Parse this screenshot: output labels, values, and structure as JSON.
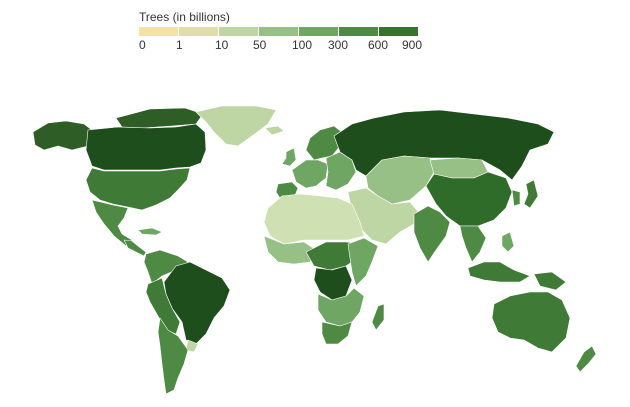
{
  "legend": {
    "title": "Trees (in billions)",
    "ticks": [
      "0",
      "1",
      "10",
      "50",
      "100",
      "300",
      "600",
      "900"
    ],
    "colors": [
      "#f5e3a4",
      "#e1ddab",
      "#bdd6a3",
      "#96c085",
      "#6fa663",
      "#4f8a45",
      "#36732f",
      "#1f4e1d"
    ]
  },
  "map": {
    "regions": [
      {
        "name": "alaska-western-canada",
        "color": "#2f5d26"
      },
      {
        "name": "canada",
        "color": "#1f4e1d"
      },
      {
        "name": "arctic-islands",
        "color": "#2f5d26"
      },
      {
        "name": "greenland",
        "color": "#bdd6a3"
      },
      {
        "name": "iceland",
        "color": "#bdd6a3"
      },
      {
        "name": "usa",
        "color": "#3f7a36"
      },
      {
        "name": "mexico",
        "color": "#4f8a45"
      },
      {
        "name": "central-america",
        "color": "#4f8a45"
      },
      {
        "name": "cuba",
        "color": "#6fa663"
      },
      {
        "name": "south-america-north",
        "color": "#4f8a45"
      },
      {
        "name": "brazil",
        "color": "#1f4e1d"
      },
      {
        "name": "peru-bolivia",
        "color": "#3f7a36"
      },
      {
        "name": "argentina-chile",
        "color": "#4f8a45"
      },
      {
        "name": "uruguay",
        "color": "#bdd6a3"
      },
      {
        "name": "scandinavia",
        "color": "#4f8a45"
      },
      {
        "name": "uk",
        "color": "#6fa663"
      },
      {
        "name": "western-europe",
        "color": "#6fa663"
      },
      {
        "name": "iberia",
        "color": "#4f8a45"
      },
      {
        "name": "eastern-europe",
        "color": "#6fa663"
      },
      {
        "name": "russia",
        "color": "#1f4e1d"
      },
      {
        "name": "kazakhstan-central-asia",
        "color": "#96c085"
      },
      {
        "name": "mongolia",
        "color": "#96c085"
      },
      {
        "name": "china",
        "color": "#2f6b29"
      },
      {
        "name": "middle-east",
        "color": "#bdd6a3"
      },
      {
        "name": "india",
        "color": "#4f8a45"
      },
      {
        "name": "southeast-asia",
        "color": "#4f8a45"
      },
      {
        "name": "japan",
        "color": "#3f7a36"
      },
      {
        "name": "korea",
        "color": "#4f8a45"
      },
      {
        "name": "indonesia",
        "color": "#3f7a36"
      },
      {
        "name": "papua-new-guinea",
        "color": "#3f7a36"
      },
      {
        "name": "philippines",
        "color": "#6fa663"
      },
      {
        "name": "north-africa",
        "color": "#cfe0b3"
      },
      {
        "name": "west-africa",
        "color": "#96c085"
      },
      {
        "name": "central-africa",
        "color": "#3f7a36"
      },
      {
        "name": "dr-congo",
        "color": "#1f4e1d"
      },
      {
        "name": "east-africa",
        "color": "#6fa663"
      },
      {
        "name": "southern-africa",
        "color": "#6fa663"
      },
      {
        "name": "south-africa",
        "color": "#4f8a45"
      },
      {
        "name": "madagascar",
        "color": "#4f8a45"
      },
      {
        "name": "australia",
        "color": "#3f7a36"
      },
      {
        "name": "new-zealand",
        "color": "#4f8a45"
      }
    ]
  }
}
